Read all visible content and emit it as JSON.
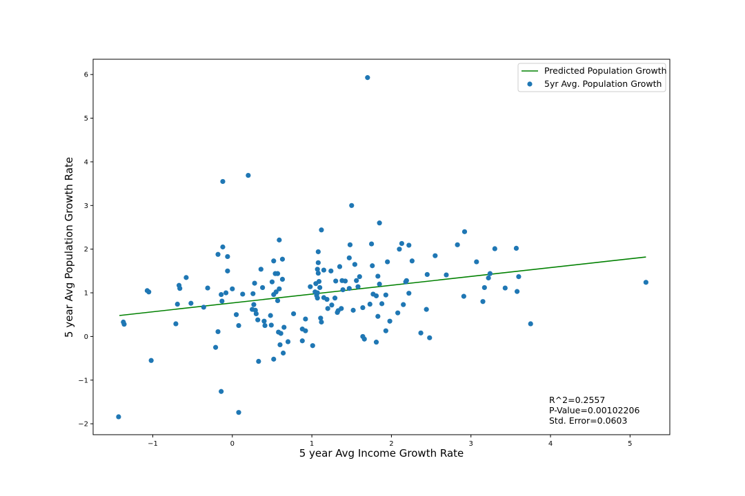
{
  "chart_data": {
    "type": "scatter",
    "xlabel": "5 year Avg Income Growth Rate",
    "ylabel": "5 year Avg Population Growth Rate",
    "xlim": [
      -1.75,
      5.5
    ],
    "ylim": [
      -2.25,
      6.35
    ],
    "xticks": [
      -1,
      0,
      1,
      2,
      3,
      4,
      5
    ],
    "yticks": [
      -2,
      -1,
      0,
      1,
      2,
      3,
      4,
      5,
      6
    ],
    "xtick_labels": [
      "−1",
      "0",
      "1",
      "2",
      "3",
      "4",
      "5"
    ],
    "ytick_labels": [
      "−2",
      "−1",
      "0",
      "1",
      "2",
      "3",
      "4",
      "5",
      "6"
    ],
    "grid": false,
    "legend_position": "top-right",
    "legend": [
      {
        "label": "Predicted Population Growth",
        "kind": "line",
        "color": "#008000"
      },
      {
        "label": "5yr Avg. Population Growth",
        "kind": "marker",
        "color": "#1f77b4"
      }
    ],
    "annotations": [
      "R^2=0.2557",
      "P-Value=0.00102206",
      "Std. Error=0.0603"
    ],
    "series": [
      {
        "type": "line",
        "color": "#008000",
        "x": [
          -1.42,
          5.2
        ],
        "y": [
          0.48,
          1.82
        ]
      },
      {
        "type": "scatter",
        "color": "#1f77b4",
        "points": [
          [
            1.7,
            5.93
          ],
          [
            0.2,
            3.69
          ],
          [
            -0.12,
            3.55
          ],
          [
            1.5,
            3.0
          ],
          [
            1.85,
            2.6
          ],
          [
            1.12,
            2.44
          ],
          [
            2.92,
            2.4
          ],
          [
            0.59,
            2.21
          ],
          [
            2.13,
            2.13
          ],
          [
            1.75,
            2.12
          ],
          [
            1.48,
            2.1
          ],
          [
            2.83,
            2.1
          ],
          [
            2.22,
            2.09
          ],
          [
            -0.12,
            2.05
          ],
          [
            3.57,
            2.02
          ],
          [
            3.3,
            2.01
          ],
          [
            2.1,
            2.0
          ],
          [
            1.08,
            1.94
          ],
          [
            -0.18,
            1.88
          ],
          [
            2.55,
            1.85
          ],
          [
            -0.06,
            1.83
          ],
          [
            1.47,
            1.8
          ],
          [
            0.63,
            1.77
          ],
          [
            0.52,
            1.73
          ],
          [
            2.26,
            1.73
          ],
          [
            1.95,
            1.71
          ],
          [
            3.07,
            1.71
          ],
          [
            1.08,
            1.69
          ],
          [
            1.54,
            1.65
          ],
          [
            1.76,
            1.62
          ],
          [
            1.35,
            1.6
          ],
          [
            0.36,
            1.54
          ],
          [
            1.07,
            1.54
          ],
          [
            1.15,
            1.52
          ],
          [
            -0.06,
            1.5
          ],
          [
            1.24,
            1.5
          ],
          [
            1.08,
            1.45
          ],
          [
            0.54,
            1.44
          ],
          [
            0.57,
            1.44
          ],
          [
            3.24,
            1.44
          ],
          [
            2.45,
            1.42
          ],
          [
            2.69,
            1.41
          ],
          [
            1.83,
            1.38
          ],
          [
            1.6,
            1.37
          ],
          [
            3.6,
            1.37
          ],
          [
            -0.58,
            1.35
          ],
          [
            3.22,
            1.34
          ],
          [
            0.63,
            1.31
          ],
          [
            1.38,
            1.28
          ],
          [
            1.56,
            1.28
          ],
          [
            2.19,
            1.28
          ],
          [
            1.3,
            1.27
          ],
          [
            1.42,
            1.27
          ],
          [
            1.09,
            1.26
          ],
          [
            0.5,
            1.25
          ],
          [
            2.18,
            1.25
          ],
          [
            0.28,
            1.22
          ],
          [
            1.05,
            1.21
          ],
          [
            5.2,
            1.24
          ],
          [
            1.85,
            1.2
          ],
          [
            -0.67,
            1.17
          ],
          [
            1.58,
            1.14
          ],
          [
            3.17,
            1.12
          ],
          [
            0.98,
            1.14
          ],
          [
            0.38,
            1.12
          ],
          [
            1.1,
            1.12
          ],
          [
            -0.31,
            1.11
          ],
          [
            3.43,
            1.11
          ],
          [
            -0.66,
            1.1
          ],
          [
            1.47,
            1.1
          ],
          [
            0.0,
            1.09
          ],
          [
            0.59,
            1.09
          ],
          [
            1.39,
            1.07
          ],
          [
            -1.07,
            1.05
          ],
          [
            -1.05,
            1.02
          ],
          [
            0.55,
            1.02
          ],
          [
            1.04,
            1.02
          ],
          [
            1.07,
            1.0
          ],
          [
            -0.08,
            1.0
          ],
          [
            3.58,
            1.03
          ],
          [
            2.22,
            0.99
          ],
          [
            0.26,
            0.98
          ],
          [
            1.77,
            0.97
          ],
          [
            0.13,
            0.97
          ],
          [
            -0.14,
            0.96
          ],
          [
            0.52,
            0.96
          ],
          [
            1.93,
            0.95
          ],
          [
            1.06,
            0.94
          ],
          [
            1.81,
            0.93
          ],
          [
            2.91,
            0.92
          ],
          [
            1.15,
            0.89
          ],
          [
            1.07,
            0.88
          ],
          [
            1.29,
            0.88
          ],
          [
            1.19,
            0.85
          ],
          [
            0.57,
            0.82
          ],
          [
            -0.13,
            0.81
          ],
          [
            3.15,
            0.8
          ],
          [
            1.73,
            0.74
          ],
          [
            0.27,
            0.73
          ],
          [
            2.15,
            0.73
          ],
          [
            1.25,
            0.72
          ],
          [
            -0.52,
            0.76
          ],
          [
            1.88,
            0.75
          ],
          [
            -0.69,
            0.74
          ],
          [
            -0.36,
            0.67
          ],
          [
            1.64,
            0.66
          ],
          [
            1.37,
            0.64
          ],
          [
            1.2,
            0.64
          ],
          [
            0.25,
            0.62
          ],
          [
            2.44,
            0.62
          ],
          [
            0.29,
            0.6
          ],
          [
            1.33,
            0.59
          ],
          [
            1.52,
            0.6
          ],
          [
            1.32,
            0.55
          ],
          [
            2.08,
            0.54
          ],
          [
            0.3,
            0.52
          ],
          [
            0.77,
            0.52
          ],
          [
            0.05,
            0.5
          ],
          [
            0.48,
            0.48
          ],
          [
            1.83,
            0.46
          ],
          [
            1.11,
            0.42
          ],
          [
            0.92,
            0.4
          ],
          [
            0.32,
            0.38
          ],
          [
            0.4,
            0.35
          ],
          [
            1.98,
            0.35
          ],
          [
            -1.37,
            0.33
          ],
          [
            1.12,
            0.33
          ],
          [
            -1.36,
            0.28
          ],
          [
            -0.71,
            0.29
          ],
          [
            0.08,
            0.25
          ],
          [
            0.41,
            0.25
          ],
          [
            3.75,
            0.29
          ],
          [
            0.49,
            0.26
          ],
          [
            0.65,
            0.21
          ],
          [
            0.88,
            0.17
          ],
          [
            0.92,
            0.13
          ],
          [
            1.93,
            0.13
          ],
          [
            -0.18,
            0.11
          ],
          [
            0.58,
            0.1
          ],
          [
            0.61,
            0.07
          ],
          [
            2.37,
            0.08
          ],
          [
            1.64,
            0.0
          ],
          [
            2.48,
            -0.03
          ],
          [
            1.66,
            -0.06
          ],
          [
            0.88,
            -0.1
          ],
          [
            0.7,
            -0.12
          ],
          [
            1.81,
            -0.13
          ],
          [
            0.6,
            -0.19
          ],
          [
            1.01,
            -0.21
          ],
          [
            -0.21,
            -0.25
          ],
          [
            0.64,
            -0.38
          ],
          [
            0.52,
            -0.52
          ],
          [
            -1.02,
            -0.55
          ],
          [
            0.33,
            -0.57
          ],
          [
            -0.14,
            -1.26
          ],
          [
            0.08,
            -1.74
          ],
          [
            -1.43,
            -1.84
          ]
        ]
      }
    ]
  }
}
